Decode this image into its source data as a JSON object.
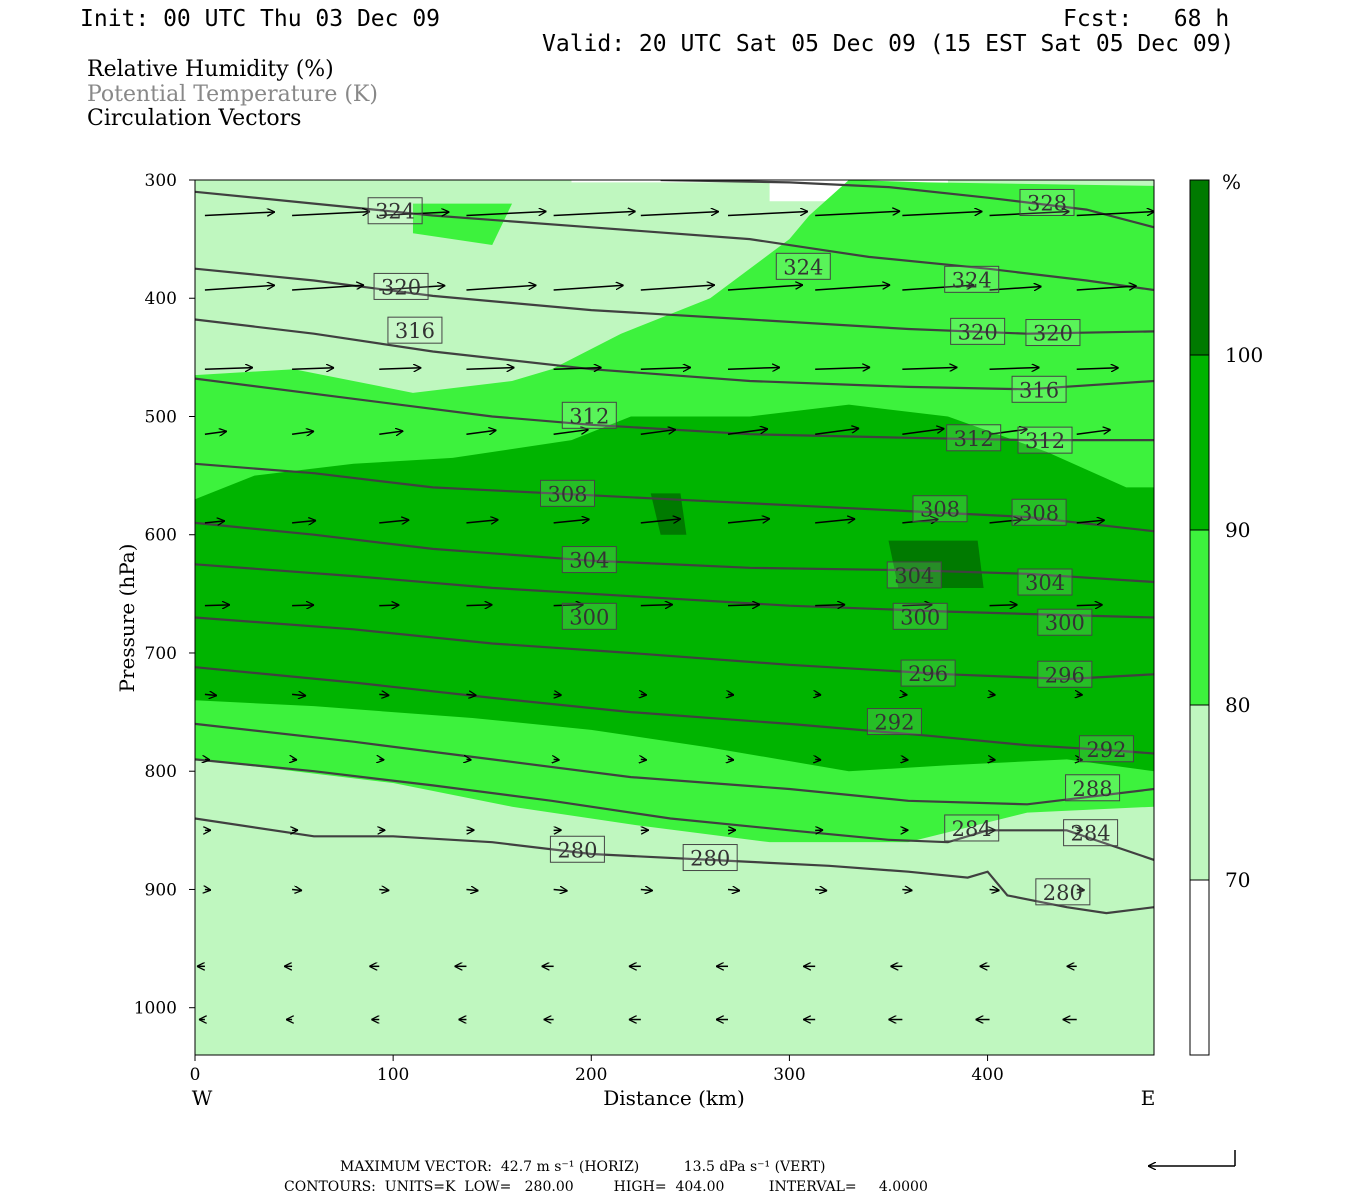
{
  "header": {
    "init": "Init: 00 UTC Thu 03 Dec 09",
    "fcst": "Fcst:   68 h",
    "valid": "Valid: 20 UTC Sat 05 Dec 09 (15 EST Sat 05 Dec 09)"
  },
  "legend": {
    "rh": "Relative Humidity (%)",
    "theta": "Potential Temperature (K)",
    "vectors": "Circulation Vectors"
  },
  "colors": {
    "rh_70_80": "#bff7bf",
    "rh_80_90": "#3df23d",
    "rh_90_100": "#00b400",
    "rh_100": "#007a00",
    "contour": "#404040",
    "theta_legend_text": "#888888"
  },
  "footer": {
    "max_vector": "MAXIMUM VECTOR:  42.7 m s⁻¹ (HORIZ)          13.5 dPa s⁻¹ (VERT)",
    "contours": "CONTOURS:  UNITS=K  LOW=   280.00         HIGH=  404.00          INTERVAL=     4.0000"
  },
  "chart_data": {
    "type": "cross-section",
    "title": "",
    "xlabel": "Distance (km)",
    "ylabel": "Pressure (hPa)",
    "xlim": [
      0,
      484
    ],
    "ylim": [
      1040,
      300
    ],
    "x_ticks": [
      0,
      100,
      200,
      300,
      400
    ],
    "y_ticks": [
      300,
      400,
      500,
      600,
      700,
      800,
      900,
      1000
    ],
    "x_end_labels": {
      "left": "W",
      "right": "E"
    },
    "colorbar": {
      "unit": "%",
      "levels": [
        70,
        80,
        90,
        100
      ]
    },
    "rh_regions": [
      {
        "level": "70-80",
        "polygons": [
          [
            [
              190,
              300
            ],
            [
              0,
              300
            ],
            [
              0,
              1040
            ],
            [
              484,
              1040
            ],
            [
              484,
              300
            ],
            [
              380,
              300
            ],
            [
              380,
              318
            ],
            [
              290,
              318
            ],
            [
              290,
              302
            ],
            [
              190,
              302
            ]
          ]
        ]
      },
      {
        "level": "80-90",
        "polygons": [
          [
            [
              0,
              465
            ],
            [
              50,
              460
            ],
            [
              110,
              480
            ],
            [
              160,
              470
            ],
            [
              180,
              460
            ],
            [
              215,
              430
            ],
            [
              260,
              400
            ],
            [
              300,
              350
            ],
            [
              310,
              330
            ],
            [
              330,
              300
            ],
            [
              370,
              302
            ],
            [
              484,
              305
            ],
            [
              484,
              830
            ],
            [
              420,
              835
            ],
            [
              360,
              860
            ],
            [
              290,
              860
            ],
            [
              220,
              845
            ],
            [
              160,
              830
            ],
            [
              100,
              810
            ],
            [
              0,
              790
            ]
          ],
          [
            [
              110,
              320
            ],
            [
              160,
              320
            ],
            [
              150,
              355
            ],
            [
              110,
              345
            ]
          ]
        ]
      },
      {
        "level": "90-100",
        "polygons": [
          [
            [
              0,
              570
            ],
            [
              30,
              550
            ],
            [
              80,
              540
            ],
            [
              130,
              535
            ],
            [
              190,
              520
            ],
            [
              220,
              500
            ],
            [
              280,
              500
            ],
            [
              330,
              490
            ],
            [
              380,
              500
            ],
            [
              430,
              530
            ],
            [
              470,
              560
            ],
            [
              484,
              560
            ],
            [
              484,
              800
            ],
            [
              440,
              790
            ],
            [
              380,
              795
            ],
            [
              330,
              800
            ],
            [
              260,
              780
            ],
            [
              200,
              765
            ],
            [
              140,
              755
            ],
            [
              60,
              745
            ],
            [
              0,
              740
            ]
          ]
        ]
      },
      {
        "level": "100+",
        "polygons": [
          [
            [
              230,
              565
            ],
            [
              245,
              565
            ],
            [
              248,
              600
            ],
            [
              235,
              600
            ]
          ],
          [
            [
              350,
              605
            ],
            [
              395,
              605
            ],
            [
              398,
              645
            ],
            [
              355,
              645
            ]
          ]
        ]
      }
    ],
    "theta_contours": [
      {
        "K": 328,
        "points": [
          [
            235,
            300
          ],
          [
            300,
            302
          ],
          [
            350,
            306
          ],
          [
            400,
            315
          ],
          [
            450,
            325
          ],
          [
            484,
            340
          ]
        ],
        "labels": [
          [
            430,
            319
          ]
        ]
      },
      {
        "K": 324,
        "points": [
          [
            0,
            310
          ],
          [
            60,
            320
          ],
          [
            120,
            330
          ],
          [
            200,
            340
          ],
          [
            280,
            350
          ],
          [
            340,
            365
          ],
          [
            400,
            375
          ],
          [
            450,
            385
          ],
          [
            484,
            393
          ]
        ],
        "labels": [
          [
            101,
            326
          ],
          [
            307,
            373
          ],
          [
            392,
            384
          ]
        ]
      },
      {
        "K": 320,
        "points": [
          [
            0,
            375
          ],
          [
            60,
            385
          ],
          [
            120,
            398
          ],
          [
            200,
            410
          ],
          [
            280,
            418
          ],
          [
            360,
            426
          ],
          [
            420,
            430
          ],
          [
            484,
            428
          ]
        ],
        "labels": [
          [
            104,
            390
          ],
          [
            395,
            428
          ],
          [
            433,
            429
          ]
        ]
      },
      {
        "K": 316,
        "points": [
          [
            0,
            418
          ],
          [
            60,
            430
          ],
          [
            120,
            445
          ],
          [
            200,
            460
          ],
          [
            280,
            470
          ],
          [
            360,
            475
          ],
          [
            420,
            477
          ],
          [
            484,
            470
          ]
        ],
        "labels": [
          [
            111,
            427
          ],
          [
            426,
            477
          ]
        ]
      },
      {
        "K": 312,
        "points": [
          [
            0,
            468
          ],
          [
            80,
            485
          ],
          [
            150,
            500
          ],
          [
            200,
            507
          ],
          [
            280,
            515
          ],
          [
            360,
            518
          ],
          [
            420,
            520
          ],
          [
            484,
            520
          ]
        ],
        "labels": [
          [
            199,
            499
          ],
          [
            393,
            518
          ],
          [
            429,
            520
          ]
        ]
      },
      {
        "K": 308,
        "points": [
          [
            0,
            540
          ],
          [
            60,
            548
          ],
          [
            120,
            560
          ],
          [
            180,
            565
          ],
          [
            240,
            570
          ],
          [
            300,
            575
          ],
          [
            360,
            580
          ],
          [
            420,
            585
          ],
          [
            484,
            597
          ]
        ],
        "labels": [
          [
            188,
            565
          ],
          [
            376,
            578
          ],
          [
            426,
            581
          ]
        ]
      },
      {
        "K": 304,
        "points": [
          [
            0,
            590
          ],
          [
            60,
            600
          ],
          [
            120,
            612
          ],
          [
            200,
            622
          ],
          [
            280,
            628
          ],
          [
            360,
            630
          ],
          [
            420,
            633
          ],
          [
            484,
            640
          ]
        ],
        "labels": [
          [
            199,
            621
          ],
          [
            363,
            634
          ],
          [
            429,
            640
          ]
        ]
      },
      {
        "K": 300,
        "points": [
          [
            0,
            625
          ],
          [
            80,
            635
          ],
          [
            150,
            645
          ],
          [
            220,
            652
          ],
          [
            300,
            660
          ],
          [
            380,
            665
          ],
          [
            440,
            668
          ],
          [
            484,
            670
          ]
        ],
        "labels": [
          [
            199,
            669
          ],
          [
            366,
            669
          ],
          [
            439,
            674
          ]
        ]
      },
      {
        "K": 296,
        "points": [
          [
            0,
            670
          ],
          [
            80,
            680
          ],
          [
            150,
            692
          ],
          [
            220,
            700
          ],
          [
            300,
            710
          ],
          [
            380,
            718
          ],
          [
            440,
            722
          ],
          [
            484,
            718
          ]
        ],
        "labels": [
          [
            370,
            717
          ],
          [
            439,
            718
          ]
        ]
      },
      {
        "K": 292,
        "points": [
          [
            0,
            712
          ],
          [
            80,
            725
          ],
          [
            150,
            738
          ],
          [
            220,
            750
          ],
          [
            300,
            760
          ],
          [
            370,
            770
          ],
          [
            420,
            778
          ],
          [
            460,
            782
          ],
          [
            484,
            785
          ]
        ],
        "labels": [
          [
            353,
            758
          ],
          [
            460,
            781
          ]
        ]
      },
      {
        "K": 288,
        "points": [
          [
            0,
            760
          ],
          [
            80,
            775
          ],
          [
            150,
            790
          ],
          [
            220,
            805
          ],
          [
            300,
            815
          ],
          [
            360,
            825
          ],
          [
            420,
            828
          ],
          [
            484,
            815
          ]
        ],
        "labels": [
          [
            453,
            814
          ]
        ]
      },
      {
        "K": 284,
        "points": [
          [
            0,
            790
          ],
          [
            60,
            800
          ],
          [
            120,
            812
          ],
          [
            180,
            825
          ],
          [
            240,
            840
          ],
          [
            300,
            850
          ],
          [
            350,
            858
          ],
          [
            380,
            860
          ],
          [
            400,
            850
          ],
          [
            440,
            850
          ],
          [
            484,
            875
          ]
        ],
        "labels": [
          [
            392,
            848
          ],
          [
            452,
            852
          ]
        ]
      },
      {
        "K": 280,
        "points": [
          [
            0,
            840
          ],
          [
            60,
            855
          ],
          [
            100,
            855
          ],
          [
            150,
            860
          ],
          [
            200,
            870
          ],
          [
            260,
            875
          ],
          [
            320,
            880
          ],
          [
            360,
            885
          ],
          [
            390,
            890
          ],
          [
            400,
            885
          ],
          [
            410,
            905
          ],
          [
            440,
            915
          ],
          [
            460,
            920
          ],
          [
            484,
            915
          ]
        ],
        "labels": [
          [
            193,
            866
          ],
          [
            260,
            873
          ],
          [
            438,
            902
          ]
        ]
      }
    ],
    "vectors_u_w": "circulation arrows, mostly westerly aloft"
  }
}
